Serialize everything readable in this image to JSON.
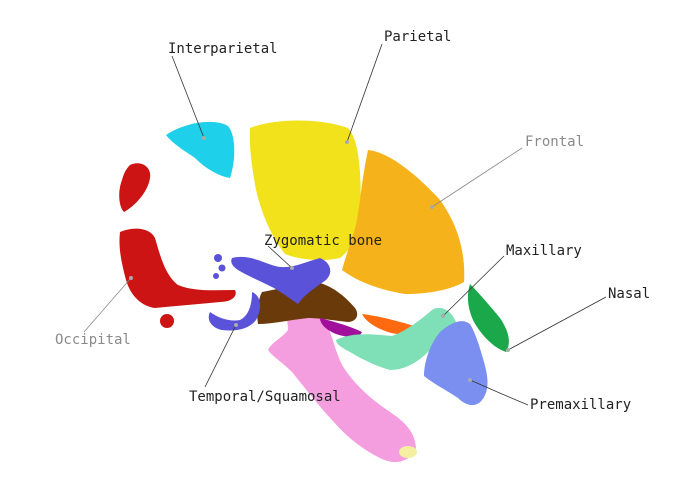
{
  "labels": {
    "interparietal": "Interparietal",
    "parietal": "Parietal",
    "frontal": "Frontal",
    "zygomatic": "Zygomatic bone",
    "maxillary": "Maxillary",
    "nasal": "Nasal",
    "occipital": "Occipital",
    "temporal": "Temporal/Squamosal",
    "premaxillary": "Premaxillary"
  },
  "colors": {
    "interparietal": "#1fd0ea",
    "parietal": "#f2e21c",
    "frontal": "#f5b21a",
    "zygomatic": "#5a52d8",
    "maxillary": "#7fe0b8",
    "nasal": "#1aa84a",
    "occipital": "#cc1414",
    "temporal": "#f49ee0",
    "premaxillary": "#7b8ff0",
    "brown_piece": "#6b3a0a",
    "magenta_piece": "#a0109a",
    "orange_piece": "#ff6a10"
  }
}
